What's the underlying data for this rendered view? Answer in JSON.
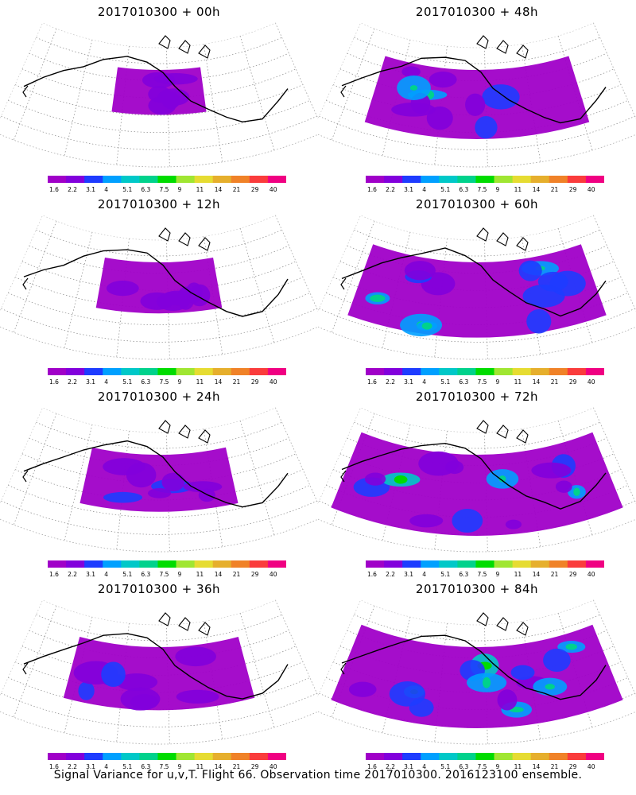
{
  "panels": [
    {
      "title": "2017010300 + 00h",
      "lead_hours": 0
    },
    {
      "title": "2017010300 + 48h",
      "lead_hours": 48
    },
    {
      "title": "2017010300 + 12h",
      "lead_hours": 12
    },
    {
      "title": "2017010300 + 60h",
      "lead_hours": 60
    },
    {
      "title": "2017010300 + 24h",
      "lead_hours": 24
    },
    {
      "title": "2017010300 + 72h",
      "lead_hours": 72
    },
    {
      "title": "2017010300 + 36h",
      "lead_hours": 36
    },
    {
      "title": "2017010300 + 84h",
      "lead_hours": 84
    }
  ],
  "colorbar": {
    "labels": [
      "1.6",
      "2.2",
      "3.1",
      "4",
      "5.1",
      "6.3",
      "7.5",
      "9",
      "11",
      "14",
      "21",
      "29",
      "40"
    ],
    "colors": [
      "#a000c8",
      "#8200dc",
      "#1e3cff",
      "#00a0ff",
      "#00c8c8",
      "#00d28c",
      "#00dc00",
      "#a0e632",
      "#e6dc32",
      "#e6af2d",
      "#f08228",
      "#fa3c3c",
      "#f00082"
    ]
  },
  "footer": "Signal Variance for u,v,T. Flight 66. Observation time 2017010300. 2016123100 ensemble."
}
